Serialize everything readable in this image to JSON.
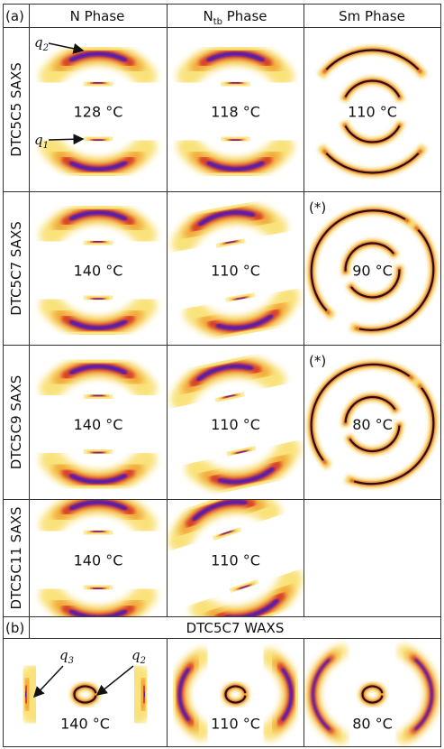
{
  "panel_a": {
    "label": "(a)",
    "columns": [
      {
        "main": "N Phase"
      },
      {
        "main": "N",
        "sub": "tb",
        "rest": " Phase"
      },
      {
        "main": "Sm Phase"
      }
    ],
    "rows": [
      {
        "label": "DTC5C5 SAXS",
        "temps": [
          "128 °C",
          "118 °C",
          "110 °C"
        ]
      },
      {
        "label": "DTC5C7 SAXS",
        "temps": [
          "140 °C",
          "110 °C",
          "90 °C"
        ],
        "note": "(*)"
      },
      {
        "label": "DTC5C9 SAXS",
        "temps": [
          "140 °C",
          "110 °C",
          "80 °C"
        ],
        "note": "(*)"
      },
      {
        "label": "DTC5C11 SAXS",
        "temps": [
          "140 °C",
          "110 °C"
        ]
      }
    ],
    "annotations": [
      {
        "symbol": "q",
        "sub": "2"
      },
      {
        "symbol": "q",
        "sub": "1"
      }
    ]
  },
  "panel_b": {
    "label": "(b)",
    "title": "DTC5C7 WAXS",
    "temps": [
      "140 °C",
      "110 °C",
      "80 °C"
    ],
    "annotations": [
      {
        "symbol": "q",
        "sub": "3"
      },
      {
        "symbol": "q",
        "sub": "2"
      }
    ]
  }
}
